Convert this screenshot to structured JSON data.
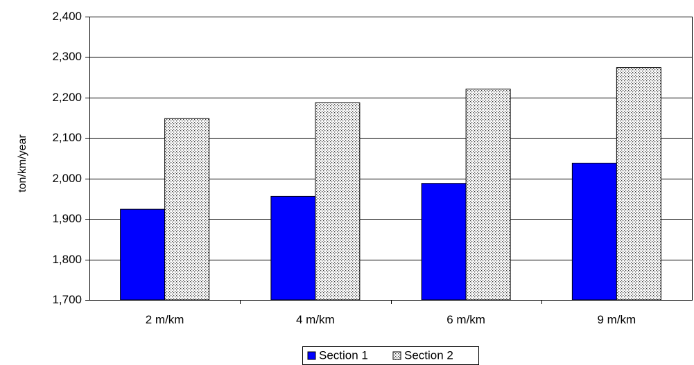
{
  "chart_data": {
    "type": "bar",
    "categories": [
      "2 m/km",
      "4 m/km",
      "6 m/km",
      "9 m/km"
    ],
    "series": [
      {
        "name": "Section 1",
        "values": [
          1924,
          1956,
          1988,
          2038
        ],
        "color": "#0000ff",
        "fill": "solid"
      },
      {
        "name": "Section 2",
        "values": [
          2148,
          2187,
          2221,
          2274
        ],
        "color": "#ffffff",
        "fill": "dotted"
      }
    ],
    "title": "",
    "xlabel": "",
    "ylabel": "ton/km/year",
    "ylim": [
      1700,
      2400
    ],
    "yticks": [
      1700,
      1800,
      1900,
      2000,
      2100,
      2200,
      2300,
      2400
    ],
    "ytick_labels": [
      "1,700",
      "1,800",
      "1,900",
      "2,000",
      "2,100",
      "2,200",
      "2,300",
      "2,400"
    ],
    "grid": true,
    "legend_position": "bottom"
  }
}
